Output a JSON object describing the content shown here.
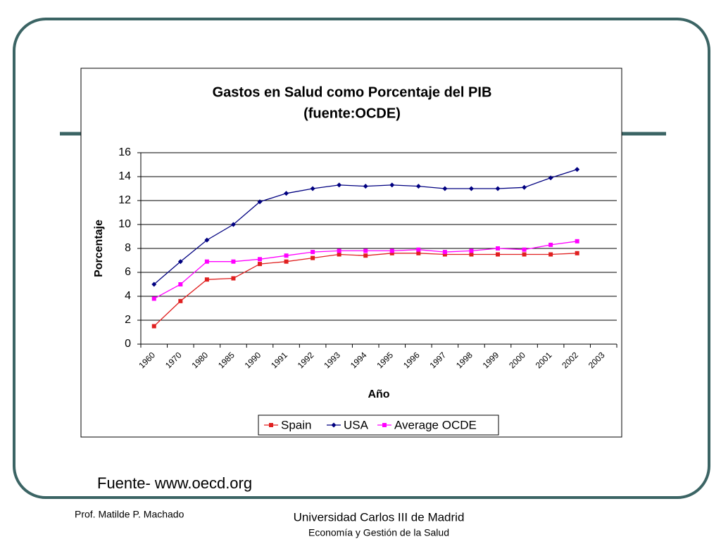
{
  "chart_data": {
    "type": "line",
    "title": "Gastos en Salud como Porcentaje del PIB",
    "subtitle": "(fuente:OCDE)",
    "y_label": "Porcentaje",
    "x_label": "Año",
    "categories": [
      "1960",
      "1970",
      "1980",
      "1985",
      "1990",
      "1991",
      "1992",
      "1993",
      "1994",
      "1995",
      "1996",
      "1997",
      "1998",
      "1999",
      "2000",
      "2001",
      "2002",
      "2003"
    ],
    "series": [
      {
        "name": "Spain",
        "color": "#e02020",
        "marker": "square",
        "values": [
          1.5,
          3.6,
          5.4,
          5.5,
          6.7,
          6.9,
          7.2,
          7.5,
          7.4,
          7.6,
          7.6,
          7.5,
          7.5,
          7.5,
          7.5,
          7.5,
          7.6,
          null
        ]
      },
      {
        "name": "USA",
        "color": "#000080",
        "marker": "diamond",
        "values": [
          5.0,
          6.9,
          8.7,
          10.0,
          11.9,
          12.6,
          13.0,
          13.3,
          13.2,
          13.3,
          13.2,
          13.0,
          13.0,
          13.0,
          13.1,
          13.9,
          14.6,
          null
        ]
      },
      {
        "name": "Average OCDE",
        "color": "#ff00ff",
        "marker": "square",
        "values": [
          3.8,
          5.0,
          6.9,
          6.9,
          7.1,
          7.4,
          7.7,
          7.8,
          7.8,
          7.8,
          7.9,
          7.7,
          7.8,
          8.0,
          7.9,
          8.3,
          8.6,
          null
        ]
      }
    ],
    "ylim": [
      0,
      16
    ],
    "yticks": [
      0,
      2,
      4,
      6,
      8,
      10,
      12,
      14,
      16
    ],
    "grid": true,
    "legend": "bottom"
  },
  "footer": {
    "source": "Fuente- www.oecd.org",
    "author": "Prof. Matilde P. Machado",
    "university": "Universidad Carlos III de Madrid",
    "course": "Economía y Gestión de la Salud"
  }
}
